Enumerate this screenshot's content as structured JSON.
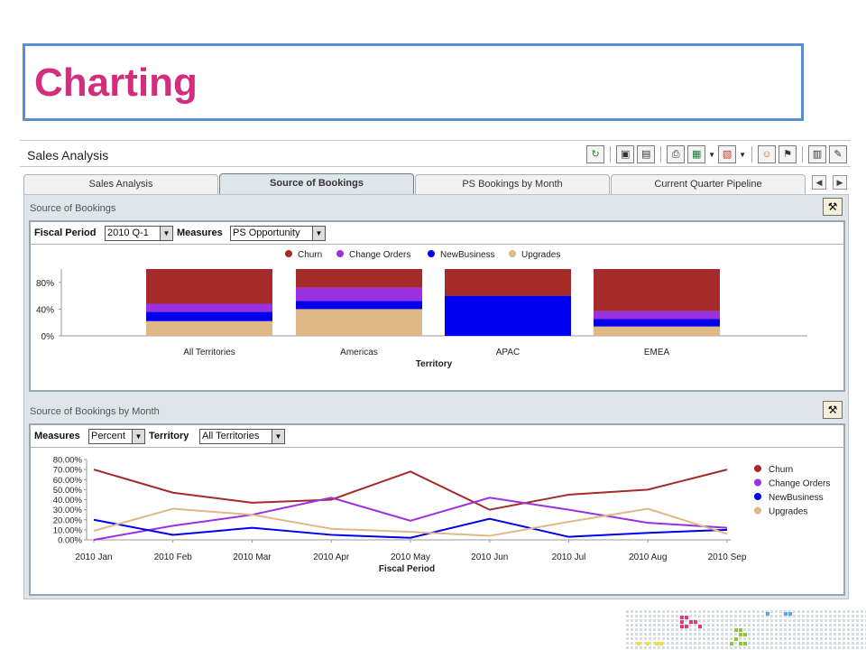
{
  "slide": {
    "title": "Charting"
  },
  "app": {
    "title": "Sales Analysis",
    "toolbar_icons": [
      "refresh-icon",
      "save-icon",
      "save-as-icon",
      "print-icon",
      "excel-export-icon",
      "pdf-export-icon",
      "user-icon",
      "run-icon",
      "clipboard-icon",
      "properties-icon"
    ]
  },
  "tabs": [
    {
      "label": "Sales Analysis",
      "active": false
    },
    {
      "label": "Source of Bookings",
      "active": true
    },
    {
      "label": "PS Bookings by Month",
      "active": false
    },
    {
      "label": "Current Quarter Pipeline",
      "active": false
    }
  ],
  "section1": {
    "title": "Source of Bookings",
    "prompts": {
      "fiscal_period_label": "Fiscal Period",
      "fiscal_period_value": "2010 Q-1",
      "measures_label": "Measures",
      "measures_value": "PS Opportunity"
    }
  },
  "section2": {
    "title": "Source of Bookings by Month",
    "prompts": {
      "measures_label": "Measures",
      "measures_value": "Percent",
      "territory_label": "Territory",
      "territory_value": "All Territories"
    }
  },
  "chart_data": [
    {
      "type": "bar",
      "stacked": true,
      "categories": [
        "All Territories",
        "Americas",
        "APAC",
        "EMEA"
      ],
      "xlabel": "Territory",
      "ylabel": "",
      "yticks": [
        "0%",
        "40%",
        "80%"
      ],
      "ylim": [
        0,
        100
      ],
      "legend_position": "top",
      "series": [
        {
          "name": "Upgrades",
          "color": "#deb887",
          "values": [
            22,
            40,
            0,
            14
          ]
        },
        {
          "name": "NewBusiness",
          "color": "#0000ee",
          "values": [
            14,
            12,
            60,
            11
          ]
        },
        {
          "name": "Change Orders",
          "color": "#9b30e0",
          "values": [
            12,
            20,
            0,
            12
          ]
        },
        {
          "name": "Churn",
          "color": "#a52a2a",
          "values": [
            52,
            28,
            40,
            63
          ]
        }
      ],
      "legend": [
        "Churn",
        "Change Orders",
        "NewBusiness",
        "Upgrades"
      ]
    },
    {
      "type": "line",
      "categories": [
        "2010 Jan",
        "2010 Feb",
        "2010 Mar",
        "2010 Apr",
        "2010 May",
        "2010 Jun",
        "2010 Jul",
        "2010 Aug",
        "2010 Sep"
      ],
      "xlabel": "Fiscal Period",
      "ylabel": "",
      "yticks": [
        "0.00%",
        "10.00%",
        "20.00%",
        "30.00%",
        "40.00%",
        "50.00%",
        "60.00%",
        "70.00%",
        "80.00%"
      ],
      "ylim": [
        0,
        80
      ],
      "legend_position": "right",
      "series": [
        {
          "name": "Churn",
          "color": "#a52a2a",
          "values": [
            70,
            47,
            37,
            40,
            68,
            30,
            45,
            50,
            70
          ]
        },
        {
          "name": "Change Orders",
          "color": "#9b30e0",
          "values": [
            0,
            14,
            25,
            42,
            19,
            42,
            30,
            17,
            12
          ]
        },
        {
          "name": "NewBusiness",
          "color": "#0000ee",
          "values": [
            20,
            5,
            12,
            5,
            2,
            21,
            3,
            7,
            10
          ]
        },
        {
          "name": "Upgrades",
          "color": "#deb887",
          "values": [
            9,
            31,
            25,
            11,
            8,
            4,
            18,
            31,
            6
          ]
        }
      ]
    }
  ]
}
